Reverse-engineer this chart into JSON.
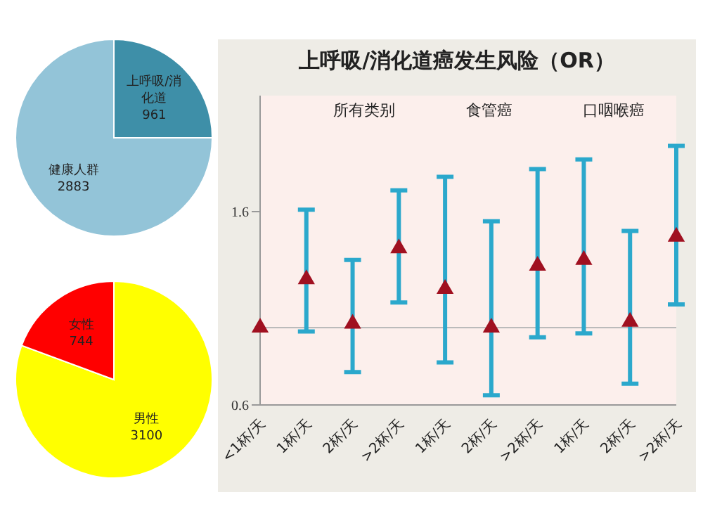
{
  "chart_data": [
    {
      "type": "pie",
      "categories": [
        "上呼吸/消化道",
        "健康人群"
      ],
      "values": [
        961,
        2883
      ],
      "colors": [
        "#3e8fa8",
        "#93c4d8"
      ],
      "data_labels": true,
      "legend": false
    },
    {
      "type": "pie",
      "categories": [
        "男性",
        "女性"
      ],
      "values": [
        3100,
        744
      ],
      "colors": [
        "#ffff00",
        "#ff0000"
      ],
      "data_labels": true,
      "legend": false
    },
    {
      "type": "scatter",
      "title": "上呼吸/消化道癌发生风险（OR）",
      "categories": [
        "<1杯/天",
        "1杯/天",
        "2杯/天",
        ">2杯/天",
        "1杯/天",
        "2杯/天",
        ">2杯/天",
        "1杯/天",
        "2杯/天",
        ">2杯/天"
      ],
      "series": [
        {
          "color": "#2ba8cc",
          "colors": [
            "#a01020",
            "#a01020",
            "#a01020",
            "#a01020",
            "#a01020",
            "#a01020",
            "#a01020",
            "#a01020",
            "#a01020",
            "#a01020"
          ],
          "values": [
            1.0,
            1.25,
            1.02,
            1.41,
            1.2,
            1.0,
            1.32,
            1.35,
            1.03,
            1.47
          ],
          "errors": [
            null,
            [
              0.98,
              1.61
            ],
            [
              0.77,
              1.35
            ],
            [
              1.13,
              1.71
            ],
            [
              0.82,
              1.78
            ],
            [
              0.65,
              1.55
            ],
            [
              0.95,
              1.82
            ],
            [
              0.97,
              1.87
            ],
            [
              0.71,
              1.5
            ],
            [
              1.12,
              1.94
            ]
          ]
        }
      ],
      "ylim": [
        0.6,
        2.2
      ],
      "yticks": [
        0.6,
        1.6
      ],
      "marker": "triangle",
      "grid": false,
      "legend": false,
      "ref_lines": [
        {
          "axis": "y",
          "value": 1,
          "color": "#bbbbbb"
        }
      ],
      "annotations": [
        "所有类别",
        "食管癌",
        "口咽喉癌"
      ]
    }
  ]
}
